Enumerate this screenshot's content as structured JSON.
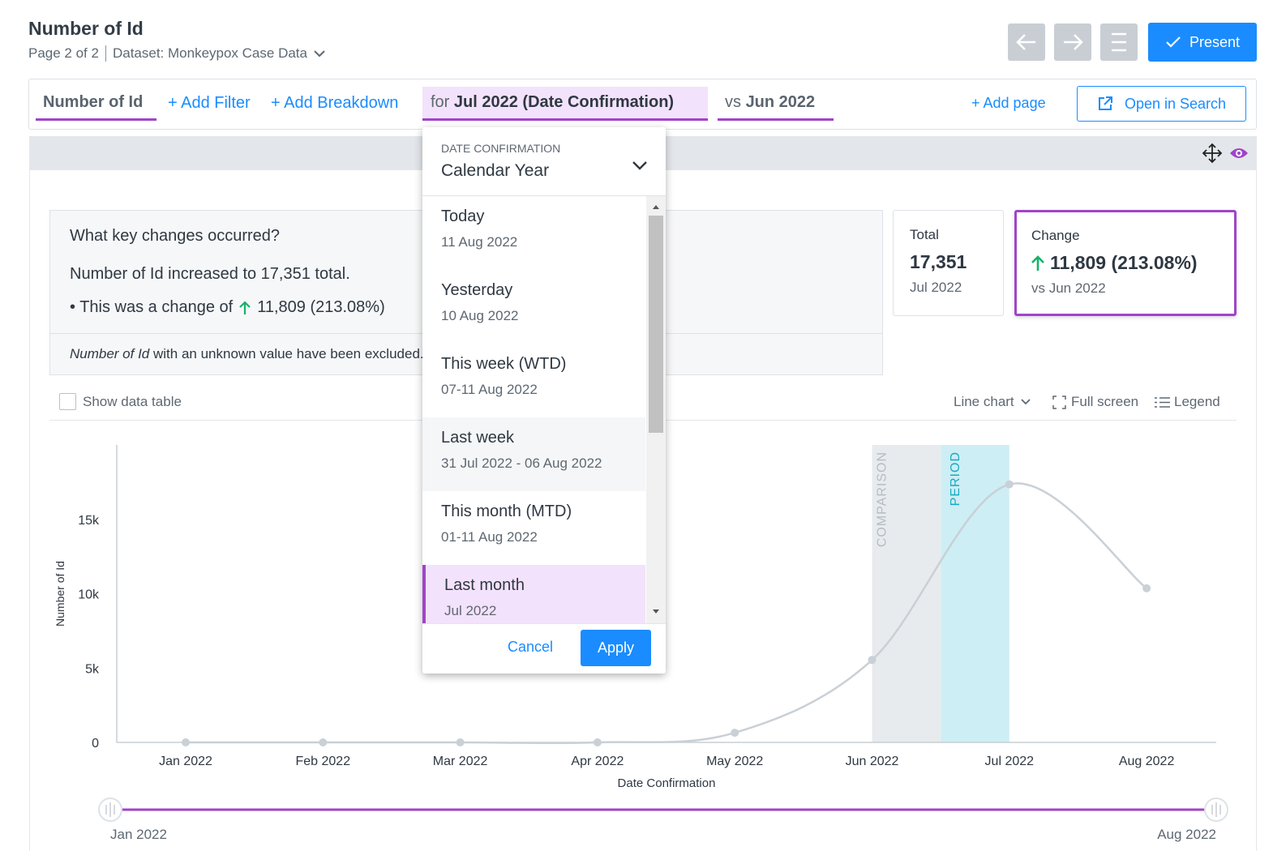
{
  "header": {
    "title": "Number of Id",
    "page": "Page 2 of 2",
    "dataset": "Dataset: Monkeypox Case Data",
    "present": "Present"
  },
  "toolbar": {
    "metric": "Number of Id",
    "add_filter": "+ Add Filter",
    "add_breakdown": "+ Add Breakdown",
    "for_prefix": "for",
    "period": "Jul 2022 (Date Confirmation)",
    "vs_prefix": "vs",
    "comparison": "Jun 2022",
    "add_page": "+ Add page",
    "open_search": "Open in Search"
  },
  "insight": {
    "question": "What key changes occurred?",
    "line1": "Number of Id increased to 17,351 total.",
    "line2_prefix": "• This was a change of",
    "line2_value": "11,809 (213.08%)",
    "note_em": "Number of Id",
    "note": "with an unknown value have been excluded."
  },
  "kpis": [
    {
      "label": "Total",
      "value": "17,351",
      "sub": "Jul 2022"
    },
    {
      "label": "Change",
      "value": "11,809 (213.08%)",
      "sub": "vs Jun 2022"
    }
  ],
  "chart_controls": {
    "show_table": "Show data table",
    "chart_type": "Line chart",
    "full_screen": "Full screen",
    "legend": "Legend"
  },
  "chart_data": {
    "type": "line",
    "x_label": "Date Confirmation",
    "y_label": "Number of Id",
    "categories": [
      "Jan 2022",
      "Feb 2022",
      "Mar 2022",
      "Apr 2022",
      "May 2022",
      "Jun 2022",
      "Jul 2022",
      "Aug 2022"
    ],
    "values": [
      0,
      0,
      0,
      0,
      650,
      5542,
      17351,
      10360
    ],
    "color": "#c9d0d6",
    "ylim": [
      0,
      20000
    ],
    "yticks": [
      0,
      {
        "value": 5000,
        "label": "5k"
      },
      {
        "value": 10000,
        "label": "10k"
      },
      {
        "value": 15000,
        "label": "15k"
      }
    ],
    "grid": false,
    "comparison_band": "COMPARISON",
    "period_band": "PERIOD"
  },
  "dropdown": {
    "label": "DATE CONFIRMATION",
    "selected": "Calendar Year",
    "options": [
      {
        "name": "Today",
        "range": "11 Aug 2022"
      },
      {
        "name": "Yesterday",
        "range": "10 Aug 2022"
      },
      {
        "name": "This week (WTD)",
        "range": "07-11 Aug 2022"
      },
      {
        "name": "Last week",
        "range": "31 Jul 2022 - 06 Aug 2022"
      },
      {
        "name": "This month (MTD)",
        "range": "01-11 Aug 2022"
      },
      {
        "name": "Last month",
        "range": "Jul 2022"
      }
    ],
    "cancel": "Cancel",
    "apply": "Apply"
  }
}
